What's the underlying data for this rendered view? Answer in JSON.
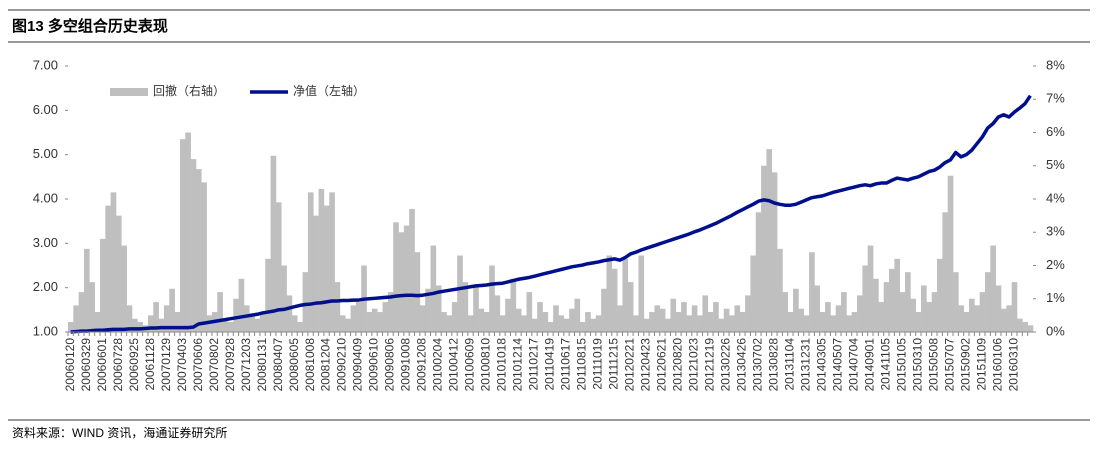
{
  "header": {
    "title": "图13 多空组合历史表现"
  },
  "chart_data": {
    "type": "combo",
    "categories": [
      "20060120",
      null,
      null,
      "20060329",
      null,
      null,
      "20060601",
      null,
      null,
      "20060728",
      null,
      null,
      "20060925",
      null,
      null,
      "20061128",
      null,
      null,
      "20070129",
      null,
      null,
      "20070403",
      null,
      null,
      "20070606",
      null,
      null,
      "20070802",
      null,
      null,
      "20070928",
      null,
      null,
      "20071203",
      null,
      null,
      "20080131",
      null,
      null,
      "20080407",
      null,
      null,
      "20080605",
      null,
      null,
      "20081008",
      null,
      null,
      "20081204",
      null,
      null,
      "20090210",
      null,
      null,
      "20090409",
      null,
      null,
      "20090610",
      null,
      null,
      "20090806",
      null,
      null,
      "20091008",
      null,
      null,
      "20091208",
      null,
      null,
      "20100204",
      null,
      null,
      "20100412",
      null,
      null,
      "20100609",
      null,
      null,
      "20100810",
      null,
      null,
      "20101018",
      null,
      null,
      "20101214",
      null,
      null,
      "20110217",
      null,
      null,
      "20110419",
      null,
      null,
      "20110617",
      null,
      null,
      "20110815",
      null,
      null,
      "20111019",
      null,
      null,
      "20111215",
      null,
      null,
      "20120221",
      null,
      null,
      "20120423",
      null,
      null,
      "20120621",
      null,
      null,
      "20120820",
      null,
      null,
      "20121023",
      null,
      null,
      "20121219",
      null,
      null,
      "20130226",
      null,
      null,
      "20130426",
      null,
      null,
      "20130702",
      null,
      null,
      "20130828",
      null,
      null,
      "20131104",
      null,
      null,
      "20131231",
      null,
      null,
      "20140305",
      null,
      null,
      "20140507",
      null,
      null,
      "20140704",
      null,
      null,
      "20140901",
      null,
      null,
      "20141105",
      null,
      null,
      "20150105",
      null,
      null,
      "20150310",
      null,
      null,
      "20150508",
      null,
      null,
      "20150707",
      null,
      null,
      "20150902",
      null,
      null,
      "20151109",
      null,
      null,
      "20160106",
      null,
      null,
      "20160310",
      null,
      null,
      null
    ],
    "series": [
      {
        "name": "回撤（右轴）",
        "type": "bar",
        "axis": "y2",
        "color": "#bfbfbf",
        "values": [
          0.3,
          0.8,
          1.2,
          2.5,
          1.5,
          0.6,
          2.8,
          3.8,
          4.2,
          3.5,
          2.6,
          0.8,
          0.4,
          0.3,
          0.2,
          0.5,
          0.9,
          0.4,
          0.8,
          1.3,
          0.6,
          5.8,
          6.0,
          5.2,
          4.9,
          4.5,
          0.5,
          0.6,
          1.2,
          0.4,
          0.3,
          1.0,
          1.6,
          0.8,
          0.5,
          0.4,
          0.6,
          2.2,
          5.3,
          3.9,
          2.0,
          1.1,
          0.5,
          0.3,
          1.8,
          4.2,
          3.5,
          4.3,
          3.8,
          4.2,
          1.5,
          0.5,
          0.4,
          0.8,
          0.9,
          2.0,
          0.6,
          0.7,
          0.6,
          0.9,
          1.2,
          3.3,
          3.0,
          3.2,
          3.7,
          2.4,
          0.8,
          1.3,
          2.6,
          1.4,
          0.6,
          0.5,
          0.9,
          2.3,
          1.5,
          0.5,
          1.4,
          0.7,
          0.6,
          2.0,
          1.1,
          0.5,
          1.0,
          1.6,
          0.7,
          0.5,
          1.2,
          0.4,
          0.9,
          0.6,
          0.3,
          0.8,
          0.5,
          0.4,
          0.7,
          1.0,
          0.3,
          0.6,
          0.4,
          0.5,
          1.3,
          2.3,
          1.9,
          0.8,
          2.2,
          1.5,
          0.5,
          2.3,
          0.4,
          0.6,
          0.8,
          0.7,
          0.4,
          1.0,
          0.6,
          0.9,
          0.5,
          0.8,
          0.5,
          1.1,
          0.6,
          0.9,
          0.4,
          0.7,
          0.5,
          0.8,
          0.6,
          1.1,
          2.3,
          3.6,
          5.0,
          5.5,
          4.8,
          2.5,
          1.2,
          0.6,
          1.3,
          0.7,
          0.5,
          2.4,
          1.4,
          0.6,
          0.9,
          0.5,
          0.8,
          1.2,
          0.5,
          0.6,
          1.1,
          2.0,
          2.6,
          1.6,
          0.9,
          1.5,
          1.9,
          2.2,
          1.2,
          1.8,
          1.0,
          0.6,
          1.4,
          0.9,
          1.2,
          2.2,
          3.6,
          4.7,
          1.8,
          0.8,
          0.6,
          1.0,
          0.8,
          1.2,
          1.8,
          2.6,
          1.4,
          0.7,
          0.8,
          1.5,
          0.4,
          0.3,
          0.2
        ]
      },
      {
        "name": "净值（左轴）",
        "type": "line",
        "color": "#000f8c",
        "values": [
          1.0,
          1.01,
          1.02,
          1.02,
          1.03,
          1.04,
          1.04,
          1.05,
          1.06,
          1.06,
          1.06,
          1.07,
          1.07,
          1.07,
          1.08,
          1.09,
          1.09,
          1.1,
          1.1,
          1.1,
          1.1,
          1.1,
          1.1,
          1.11,
          1.18,
          1.2,
          1.22,
          1.24,
          1.26,
          1.28,
          1.3,
          1.32,
          1.34,
          1.36,
          1.38,
          1.4,
          1.43,
          1.45,
          1.47,
          1.5,
          1.51,
          1.54,
          1.57,
          1.6,
          1.62,
          1.63,
          1.65,
          1.66,
          1.68,
          1.7,
          1.7,
          1.71,
          1.71,
          1.72,
          1.72,
          1.74,
          1.75,
          1.76,
          1.77,
          1.78,
          1.79,
          1.81,
          1.82,
          1.83,
          1.83,
          1.82,
          1.83,
          1.85,
          1.87,
          1.9,
          1.92,
          1.94,
          1.96,
          1.98,
          2.0,
          2.02,
          2.04,
          2.05,
          2.06,
          2.08,
          2.09,
          2.1,
          2.13,
          2.16,
          2.19,
          2.21,
          2.23,
          2.26,
          2.29,
          2.32,
          2.35,
          2.38,
          2.41,
          2.44,
          2.47,
          2.49,
          2.51,
          2.54,
          2.56,
          2.58,
          2.61,
          2.63,
          2.65,
          2.62,
          2.68,
          2.76,
          2.8,
          2.85,
          2.89,
          2.93,
          2.97,
          3.01,
          3.05,
          3.09,
          3.13,
          3.17,
          3.21,
          3.26,
          3.3,
          3.35,
          3.4,
          3.45,
          3.51,
          3.57,
          3.63,
          3.7,
          3.76,
          3.82,
          3.88,
          3.95,
          3.98,
          3.96,
          3.91,
          3.88,
          3.86,
          3.86,
          3.88,
          3.93,
          3.98,
          4.03,
          4.05,
          4.07,
          4.11,
          4.15,
          4.18,
          4.21,
          4.24,
          4.27,
          4.3,
          4.32,
          4.3,
          4.34,
          4.36,
          4.36,
          4.42,
          4.47,
          4.45,
          4.43,
          4.47,
          4.5,
          4.56,
          4.62,
          4.65,
          4.72,
          4.82,
          4.88,
          5.05,
          4.95,
          5.0,
          5.1,
          5.25,
          5.4,
          5.6,
          5.7,
          5.85,
          5.9,
          5.85,
          5.96,
          6.05,
          6.15,
          6.33
        ]
      }
    ],
    "ylim": [
      1,
      7
    ],
    "yticks": [
      {
        "value": 1,
        "label": "1.00"
      },
      {
        "value": 2,
        "label": "2.00"
      },
      {
        "value": 3,
        "label": "3.00"
      },
      {
        "value": 4,
        "label": "4.00"
      },
      {
        "value": 5,
        "label": "5.00"
      },
      {
        "value": 6,
        "label": "6.00"
      },
      {
        "value": 7,
        "label": "7.00"
      }
    ],
    "y2lim": [
      0,
      8
    ],
    "y2ticks": [
      {
        "value": 0,
        "label": "0%"
      },
      {
        "value": 1,
        "label": "1%"
      },
      {
        "value": 2,
        "label": "2%"
      },
      {
        "value": 3,
        "label": "3%"
      },
      {
        "value": 4,
        "label": "4%"
      },
      {
        "value": 5,
        "label": "5%"
      },
      {
        "value": 6,
        "label": "6%"
      },
      {
        "value": 7,
        "label": "7%"
      },
      {
        "value": 8,
        "label": "8%"
      }
    ],
    "legend": "upper left",
    "grid": false
  },
  "footer": {
    "source": "资料来源：WIND 资讯，海通证券研究所"
  }
}
